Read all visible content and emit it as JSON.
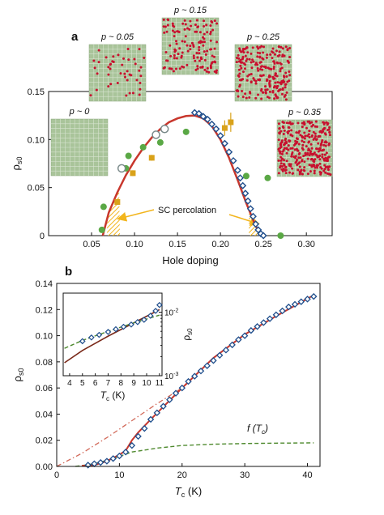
{
  "panels": {
    "a": {
      "label": "a"
    },
    "b": {
      "label": "b"
    }
  },
  "colors": {
    "fit_curve": "#c8372d",
    "data_diamond": "#1f4e8c",
    "green_point": "#5aa845",
    "orange_point": "#d9a21a",
    "percolation_arrow": "#f2b51d",
    "lattice_bg": "#a9c49a",
    "dopant": "#c8102e",
    "extrapolation": "#d26a5a",
    "f_curve": "#4f8a2f"
  },
  "lattice_insets": [
    {
      "p_label": "p ~ 0",
      "density": 0
    },
    {
      "p_label": "p ~ 0.05",
      "density": 0.05
    },
    {
      "p_label": "p ~ 0.15",
      "density": 0.15
    },
    {
      "p_label": "p ~ 0.25",
      "density": 0.25
    },
    {
      "p_label": "p ~ 0.35",
      "density": 0.35
    }
  ],
  "annotations": {
    "percolation": "SC percolation",
    "f_label": "f (T",
    "f_sub": "c",
    "f_close": ")"
  },
  "chart_data": [
    {
      "type": "line",
      "panel": "a",
      "xlabel": "Hole doping",
      "ylabel": "ρ",
      "ylabel_sub": "s0",
      "xlim": [
        0,
        0.33
      ],
      "ylim": [
        0,
        0.15
      ],
      "xticks": [
        "0.05",
        "0.10",
        "0.15",
        "0.20",
        "0.25",
        "0.30"
      ],
      "xtick_values": [
        0.05,
        0.1,
        0.15,
        0.2,
        0.25,
        0.3
      ],
      "yticks": [
        "0",
        "0.05",
        "0.10",
        "0.15"
      ],
      "ytick_values": [
        0,
        0.05,
        0.1,
        0.15
      ],
      "grid": false,
      "series": [
        {
          "kind": "fit_curve",
          "x": [
            0.063,
            0.07,
            0.08,
            0.09,
            0.1,
            0.11,
            0.12,
            0.13,
            0.14,
            0.15,
            0.16,
            0.17,
            0.18,
            0.19,
            0.2,
            0.21,
            0.22,
            0.23,
            0.24,
            0.245,
            0.25
          ],
          "y": [
            0.0,
            0.024,
            0.045,
            0.063,
            0.078,
            0.091,
            0.102,
            0.111,
            0.118,
            0.122,
            0.1245,
            0.125,
            0.122,
            0.114,
            0.1,
            0.081,
            0.058,
            0.034,
            0.012,
            0.003,
            0.0
          ]
        },
        {
          "kind": "diamonds",
          "x": [
            0.17,
            0.175,
            0.18,
            0.185,
            0.19,
            0.195,
            0.2,
            0.205,
            0.21,
            0.215,
            0.22,
            0.223,
            0.226,
            0.229,
            0.232,
            0.235,
            0.238,
            0.241,
            0.244,
            0.247,
            0.25
          ],
          "y": [
            0.128,
            0.127,
            0.124,
            0.121,
            0.116,
            0.111,
            0.104,
            0.096,
            0.087,
            0.078,
            0.068,
            0.06,
            0.052,
            0.044,
            0.036,
            0.028,
            0.02,
            0.012,
            0.006,
            0.002,
            0.0
          ]
        },
        {
          "kind": "green_points",
          "x": [
            0.062,
            0.064,
            0.09,
            0.093,
            0.11,
            0.13,
            0.16,
            0.23,
            0.255,
            0.27
          ],
          "y": [
            0.006,
            0.03,
            0.07,
            0.083,
            0.092,
            0.097,
            0.108,
            0.062,
            0.06,
            0.0
          ]
        },
        {
          "kind": "open_circles",
          "x": [
            0.085,
            0.125,
            0.135
          ],
          "y": [
            0.07,
            0.105,
            0.111
          ]
        },
        {
          "kind": "orange_squares",
          "x": [
            0.08,
            0.098,
            0.12,
            0.205,
            0.212
          ],
          "y": [
            0.035,
            0.065,
            0.081,
            0.112,
            0.118
          ],
          "err": [
            0.003,
            0.003,
            0.003,
            0.008,
            0.01
          ]
        }
      ]
    },
    {
      "type": "line",
      "panel": "b",
      "xlabel": "T",
      "xlabel_sub": "c",
      "xlabel_unit": " (K)",
      "ylabel": "ρ",
      "ylabel_sub": "s0",
      "xlim": [
        0,
        42
      ],
      "ylim": [
        0,
        0.14
      ],
      "xticks": [
        "0",
        "10",
        "20",
        "30",
        "40"
      ],
      "xtick_values": [
        0,
        10,
        20,
        30,
        40
      ],
      "yticks": [
        "0.00",
        "0.02",
        "0.04",
        "0.06",
        "0.08",
        "0.10",
        "0.12",
        "0.14"
      ],
      "ytick_values": [
        0,
        0.02,
        0.04,
        0.06,
        0.08,
        0.1,
        0.12,
        0.14
      ],
      "grid": false,
      "series": [
        {
          "kind": "fit_curve",
          "x": [
            4,
            6,
            8,
            10,
            11,
            12,
            13,
            15,
            20,
            25,
            30,
            35,
            41
          ],
          "y": [
            0.0005,
            0.001,
            0.004,
            0.009,
            0.012,
            0.02,
            0.026,
            0.036,
            0.06,
            0.083,
            0.101,
            0.115,
            0.131
          ]
        },
        {
          "kind": "extrapolation",
          "x": [
            0,
            4,
            8,
            12,
            16,
            20
          ],
          "y": [
            0.0,
            0.01,
            0.022,
            0.035,
            0.048,
            0.06
          ]
        },
        {
          "kind": "f_curve",
          "x": [
            3,
            6,
            9,
            12,
            16,
            20,
            25,
            30,
            35,
            41
          ],
          "y": [
            0.0,
            0.002,
            0.006,
            0.011,
            0.014,
            0.016,
            0.017,
            0.0175,
            0.0178,
            0.018
          ]
        },
        {
          "kind": "diamonds",
          "x": [
            5,
            6,
            7,
            8,
            9,
            10,
            11,
            12,
            13,
            14,
            15,
            16,
            17,
            18,
            19,
            20,
            21,
            22,
            23,
            24,
            25,
            26,
            27,
            28,
            29,
            30,
            31,
            32,
            33,
            34,
            35,
            36,
            37,
            38,
            39,
            40,
            41
          ],
          "y": [
            0.001,
            0.002,
            0.003,
            0.004,
            0.006,
            0.008,
            0.011,
            0.016,
            0.023,
            0.029,
            0.036,
            0.041,
            0.046,
            0.051,
            0.056,
            0.06,
            0.065,
            0.069,
            0.073,
            0.077,
            0.081,
            0.085,
            0.089,
            0.093,
            0.097,
            0.1,
            0.104,
            0.107,
            0.11,
            0.113,
            0.116,
            0.119,
            0.122,
            0.124,
            0.126,
            0.128,
            0.13
          ]
        }
      ]
    },
    {
      "type": "line",
      "panel": "b-inset",
      "xlabel": "T",
      "xlabel_sub": "c",
      "xlabel_unit": " (K)",
      "ylabel": "ρ",
      "ylabel_sub": "s0",
      "yscale": "log",
      "xlim": [
        3.5,
        11.2
      ],
      "ylim": [
        0.001,
        0.02
      ],
      "xticks": [
        "4",
        "5",
        "6",
        "7",
        "8",
        "9",
        "10",
        "11"
      ],
      "xtick_values": [
        4,
        5,
        6,
        7,
        8,
        9,
        10,
        11
      ],
      "ytick_values": [
        0.001,
        0.01
      ],
      "yticks_base": [
        "10",
        "10"
      ],
      "yticks_exp": [
        "-3",
        "-2"
      ],
      "grid": false,
      "series": [
        {
          "kind": "fit_curve",
          "x": [
            3.6,
            5,
            7,
            9,
            11
          ],
          "y": [
            0.0016,
            0.0025,
            0.0042,
            0.0068,
            0.011
          ]
        },
        {
          "kind": "f_curve",
          "x": [
            3.6,
            5,
            7,
            9,
            11
          ],
          "y": [
            0.0027,
            0.0036,
            0.005,
            0.0068,
            0.009
          ]
        },
        {
          "kind": "diamonds",
          "x": [
            5.0,
            5.7,
            6.3,
            7.0,
            7.6,
            8.2,
            8.8,
            9.3,
            9.8,
            10.3,
            10.7,
            11.0
          ],
          "y": [
            0.0035,
            0.004,
            0.0044,
            0.0049,
            0.0054,
            0.0059,
            0.0064,
            0.007,
            0.0076,
            0.0088,
            0.0105,
            0.013
          ]
        }
      ]
    }
  ]
}
